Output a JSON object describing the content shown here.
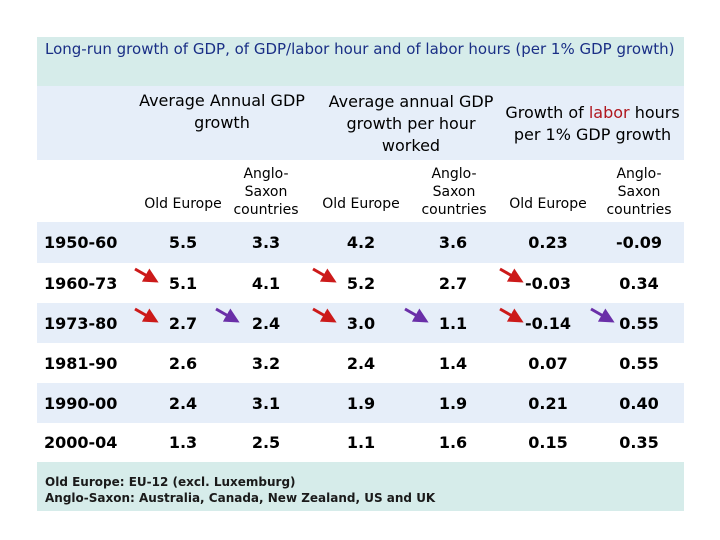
{
  "title": "Long-run growth of GDP, of GDP/labor hour and of labor hours (per 1% GDP growth)",
  "groups": {
    "g1": "Average Annual GDP growth",
    "g2": "Average annual GDP growth per hour worked",
    "g3_pre": "Growth of ",
    "g3_highlight": "labor",
    "g3_post": " hours per 1% GDP growth"
  },
  "subheaders": {
    "old": "Old Europe",
    "anglo": "Anglo-Saxon countries"
  },
  "rows": [
    {
      "period": "1950-60",
      "values": [
        "5.5",
        "3.3",
        "4.2",
        "3.6",
        "0.23",
        "-0.09"
      ]
    },
    {
      "period": "1960-73",
      "values": [
        "5.1",
        "4.1",
        "5.2",
        "2.7",
        "-0.03",
        "0.34"
      ]
    },
    {
      "period": "1973-80",
      "values": [
        "2.7",
        "2.4",
        "3.0",
        "1.1",
        "-0.14",
        "0.55"
      ]
    },
    {
      "period": "1981-90",
      "values": [
        "2.6",
        "3.2",
        "2.4",
        "1.4",
        "0.07",
        "0.55"
      ]
    },
    {
      "period": "1990-00",
      "values": [
        "2.4",
        "3.1",
        "1.9",
        "1.9",
        "0.21",
        "0.40"
      ]
    },
    {
      "period": "2000-04",
      "values": [
        "1.3",
        "2.5",
        "1.1",
        "1.6",
        "0.15",
        "0.35"
      ]
    }
  ],
  "footnote": {
    "line1": "Old Europe: EU-12 (excl. Luxemburg)",
    "line2": "Anglo-Saxon: Australia, Canada, New Zealand, US and UK"
  },
  "colors": {
    "red_arrow": "#cc1a1a",
    "purple_arrow": "#6a2fa8",
    "title_text": "#1a2f86",
    "highlight_text": "#b0171f"
  },
  "arrows": [
    {
      "row": 1,
      "col": 0,
      "color": "red_arrow"
    },
    {
      "row": 1,
      "col": 2,
      "color": "red_arrow"
    },
    {
      "row": 1,
      "col": 4,
      "color": "red_arrow"
    },
    {
      "row": 2,
      "col": 0,
      "color": "red_arrow"
    },
    {
      "row": 2,
      "col": 1,
      "color": "purple_arrow"
    },
    {
      "row": 2,
      "col": 2,
      "color": "red_arrow"
    },
    {
      "row": 2,
      "col": 3,
      "color": "purple_arrow"
    },
    {
      "row": 2,
      "col": 4,
      "color": "red_arrow"
    },
    {
      "row": 2,
      "col": 5,
      "color": "purple_arrow"
    }
  ]
}
